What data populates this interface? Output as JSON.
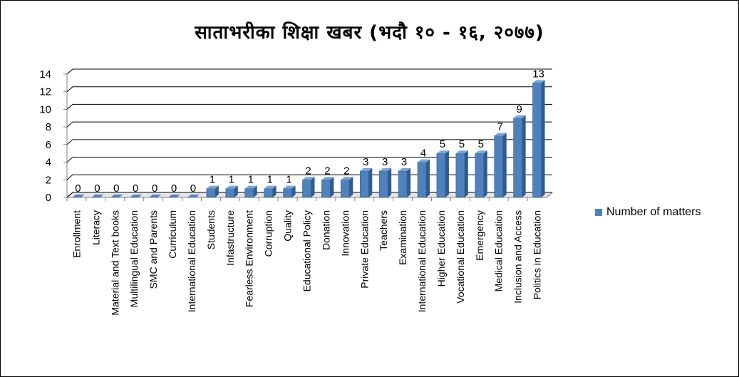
{
  "chart_data": {
    "type": "bar",
    "title": "साताभरीका शिक्षा खबर (भदौ १० - १६, २०७७)",
    "xlabel": "",
    "ylabel": "",
    "ylim": [
      0,
      14
    ],
    "yticks": [
      0,
      2,
      4,
      6,
      8,
      10,
      12,
      14
    ],
    "grid": true,
    "legend_position": "right",
    "categories": [
      "Enrollment",
      "Literacy",
      "Material and Text books",
      "Multilingual Education",
      "SMC and Parents",
      "Curriculum",
      "International Education",
      "Students",
      "Infastructure",
      "Fearless Environment",
      "Corruption",
      "Quality",
      "Educational Policy",
      "Donation",
      "Innovation",
      "Private Education",
      "Teachers",
      "Examination",
      "International Education",
      "Higher Education",
      "Vocational Education",
      "Emergency",
      "Medical Education",
      "Inclusion and Access",
      "Politics in Education"
    ],
    "series": [
      {
        "name": "Number of matters",
        "color": "#4F81BD",
        "values": [
          0,
          0,
          0,
          0,
          0,
          0,
          0,
          1,
          1,
          1,
          1,
          1,
          2,
          2,
          2,
          3,
          3,
          3,
          4,
          5,
          5,
          5,
          7,
          9,
          13
        ]
      }
    ]
  }
}
